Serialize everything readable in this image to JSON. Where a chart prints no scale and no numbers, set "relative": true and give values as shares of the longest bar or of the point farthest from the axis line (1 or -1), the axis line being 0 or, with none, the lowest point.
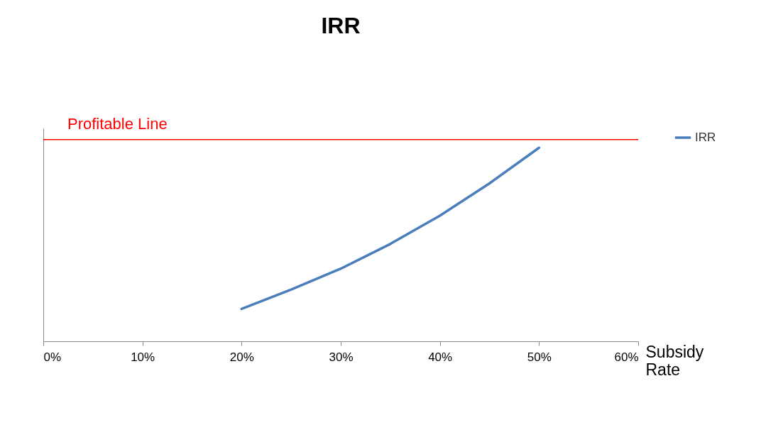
{
  "chart_data": {
    "type": "line",
    "title": "IRR",
    "xlabel": "Subsidy Rate",
    "relative": true,
    "x": [
      20,
      25,
      30,
      35,
      40,
      45,
      50
    ],
    "series": [
      {
        "name": "IRR",
        "color": "#4a7ebb",
        "values": [
          0.167,
          0.267,
          0.375,
          0.503,
          0.649,
          0.816,
          1
        ]
      }
    ],
    "xlim": [
      0,
      60
    ],
    "xticks": [
      {
        "value": 0,
        "label": "0%"
      },
      {
        "value": 10,
        "label": "10%"
      },
      {
        "value": 20,
        "label": "20%"
      },
      {
        "value": 30,
        "label": "30%"
      },
      {
        "value": 40,
        "label": "40%"
      },
      {
        "value": 50,
        "label": "50%"
      },
      {
        "value": 60,
        "label": "60%"
      }
    ],
    "ref_lines": [
      {
        "axis": "y",
        "value": 1.042,
        "label": "Profitable Line",
        "color": "#ff0000"
      }
    ],
    "legend": "right",
    "grid": false,
    "marker": "none",
    "line_style": "solid"
  }
}
